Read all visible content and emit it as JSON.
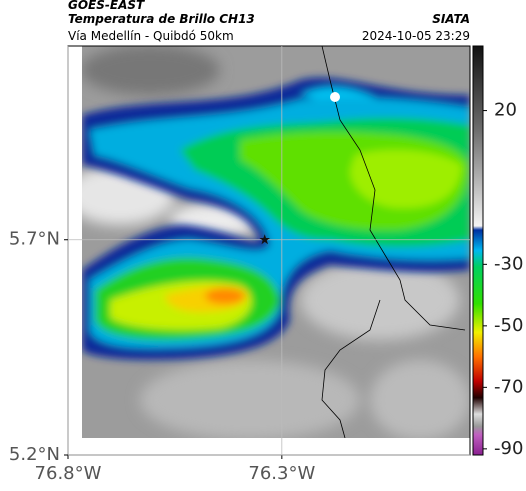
{
  "chart_data": {
    "type": "map",
    "title": "GOES-EAST",
    "subtitle": "Temperatura de Brillo CH13",
    "route": "Vía Medellín - Quibdó 50km",
    "source": "SIATA",
    "timestamp": "2024-10-05 23:29",
    "xlim": [
      -76.8,
      -75.86
    ],
    "ylim": [
      5.2,
      6.15
    ],
    "xticks": [
      {
        "value": -76.8,
        "label": "76.8°W"
      },
      {
        "value": -76.3,
        "label": "76.3°W"
      }
    ],
    "yticks": [
      {
        "value": 5.2,
        "label": "5.2°N"
      },
      {
        "value": 5.7,
        "label": "5.7°N"
      }
    ],
    "grid": true,
    "marker": {
      "x": -76.34,
      "y": 5.7
    },
    "colorbar": {
      "lim": [
        -92,
        41
      ],
      "ticks": [
        20,
        -30,
        -50,
        -70,
        -90
      ]
    }
  }
}
